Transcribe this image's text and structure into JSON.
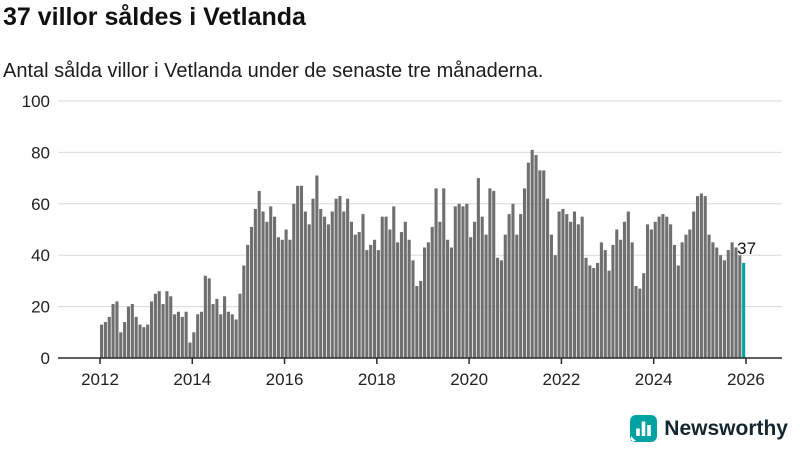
{
  "header": {
    "title": "37 villor såldes i Vetlanda",
    "subtitle": "Antal sålda villor i Vetlanda under de senaste tre månaderna."
  },
  "footer": {
    "brand": "Newsworthy"
  },
  "colors": {
    "bar": "#6f6f6f",
    "accent": "#00a2a2",
    "axis": "#2b2b2b",
    "grid": "#d9d9d9",
    "tick_text": "#222222",
    "annotation_text": "#111111"
  },
  "chart_data": {
    "type": "bar",
    "title": "37 villor såldes i Vetlanda",
    "subtitle": "Antal sålda villor i Vetlanda under de senaste tre månaderna.",
    "x_unit": "month",
    "x_start": "2012-01",
    "x_end": "2025-12",
    "x_tick_labels": [
      "2012",
      "2014",
      "2016",
      "2018",
      "2020",
      "2022",
      "2024",
      "2026"
    ],
    "y_ticks": [
      0,
      20,
      40,
      60,
      80,
      100
    ],
    "ylim": [
      0,
      100
    ],
    "grid": true,
    "legend": "none",
    "values": [
      13,
      14,
      16,
      21,
      22,
      10,
      14,
      20,
      21,
      16,
      13,
      12,
      13,
      22,
      25,
      26,
      21,
      26,
      24,
      17,
      18,
      16,
      18,
      6,
      10,
      17,
      18,
      32,
      31,
      21,
      23,
      17,
      24,
      18,
      17,
      15,
      25,
      36,
      44,
      51,
      58,
      65,
      57,
      53,
      59,
      55,
      47,
      46,
      50,
      46,
      60,
      67,
      67,
      57,
      52,
      62,
      71,
      58,
      55,
      52,
      57,
      62,
      63,
      57,
      62,
      53,
      48,
      49,
      56,
      42,
      44,
      46,
      42,
      55,
      55,
      50,
      59,
      45,
      49,
      53,
      46,
      38,
      28,
      30,
      43,
      45,
      51,
      66,
      53,
      66,
      46,
      43,
      59,
      60,
      59,
      60,
      47,
      53,
      70,
      55,
      48,
      66,
      65,
      39,
      38,
      48,
      56,
      60,
      48,
      56,
      66,
      76,
      81,
      79,
      73,
      73,
      62,
      48,
      40,
      57,
      58,
      56,
      53,
      57,
      52,
      55,
      39,
      36,
      35,
      37,
      45,
      42,
      34,
      44,
      50,
      46,
      53,
      57,
      45,
      28,
      27,
      33,
      52,
      50,
      53,
      55,
      56,
      55,
      52,
      44,
      36,
      45,
      48,
      50,
      57,
      63,
      64,
      63,
      48,
      45,
      43,
      40,
      38,
      42,
      45,
      43,
      40,
      37
    ],
    "highlight": {
      "index": 167,
      "value": 37,
      "label": "37"
    }
  }
}
